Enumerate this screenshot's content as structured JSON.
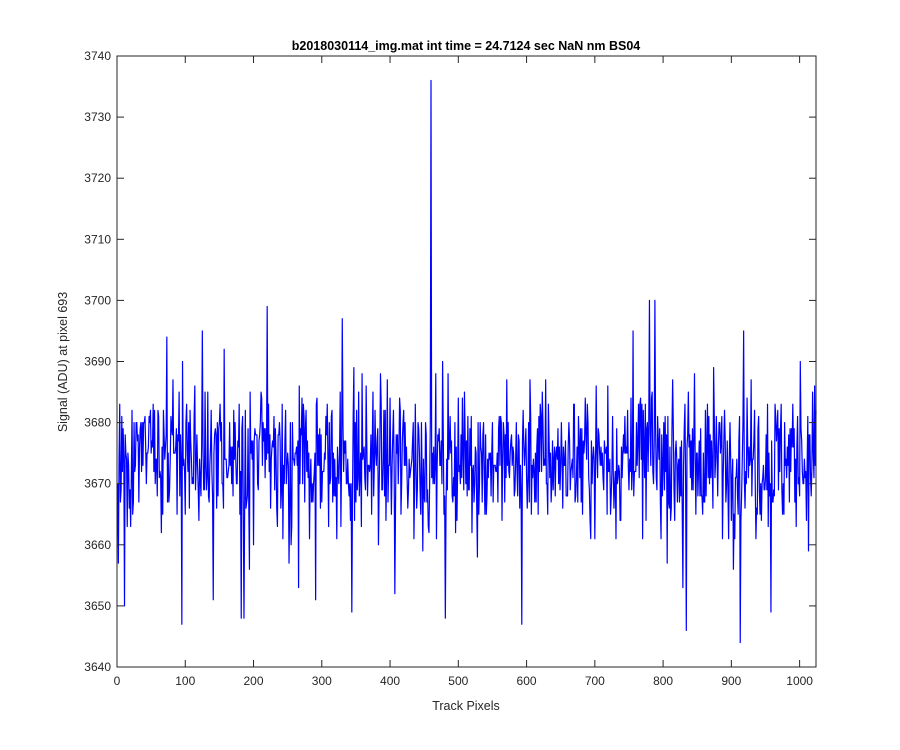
{
  "chart_data": {
    "type": "line",
    "title": "b2018030114_img.mat int time = 24.7124 sec   NaN nm BS04",
    "xlabel": "Track Pixels",
    "ylabel": "Signal (ADU) at pixel 693",
    "xlim": [
      0,
      1024
    ],
    "ylim": [
      3640,
      3740
    ],
    "xticks": [
      0,
      100,
      200,
      300,
      400,
      500,
      600,
      700,
      800,
      900,
      1000
    ],
    "yticks": [
      3640,
      3650,
      3660,
      3670,
      3680,
      3690,
      3700,
      3710,
      3720,
      3730,
      3740
    ],
    "grid": false,
    "legend": "none",
    "series": [
      {
        "color": "#0000ff",
        "baseline_mean": 3674,
        "noise_range": [
          3656,
          3693
        ],
        "x_count": 1024,
        "notable_points": [
          {
            "x": 1,
            "y": 3657
          },
          {
            "x": 10,
            "y": 3650
          },
          {
            "x": 72,
            "y": 3694
          },
          {
            "x": 94,
            "y": 3647
          },
          {
            "x": 124,
            "y": 3695
          },
          {
            "x": 140,
            "y": 3651
          },
          {
            "x": 181,
            "y": 3648
          },
          {
            "x": 185,
            "y": 3648
          },
          {
            "x": 219,
            "y": 3699
          },
          {
            "x": 265,
            "y": 3653
          },
          {
            "x": 290,
            "y": 3651
          },
          {
            "x": 329,
            "y": 3697
          },
          {
            "x": 343,
            "y": 3649
          },
          {
            "x": 406,
            "y": 3652
          },
          {
            "x": 459,
            "y": 3736
          },
          {
            "x": 480,
            "y": 3648
          },
          {
            "x": 592,
            "y": 3647
          },
          {
            "x": 755,
            "y": 3695
          },
          {
            "x": 779,
            "y": 3700
          },
          {
            "x": 787,
            "y": 3700
          },
          {
            "x": 828,
            "y": 3653
          },
          {
            "x": 833,
            "y": 3646
          },
          {
            "x": 912,
            "y": 3644
          },
          {
            "x": 917,
            "y": 3695
          },
          {
            "x": 957,
            "y": 3649
          },
          {
            "x": 1000,
            "y": 3690
          },
          {
            "x": 1012,
            "y": 3659
          },
          {
            "x": 1023,
            "y": 3682
          }
        ]
      }
    ]
  }
}
